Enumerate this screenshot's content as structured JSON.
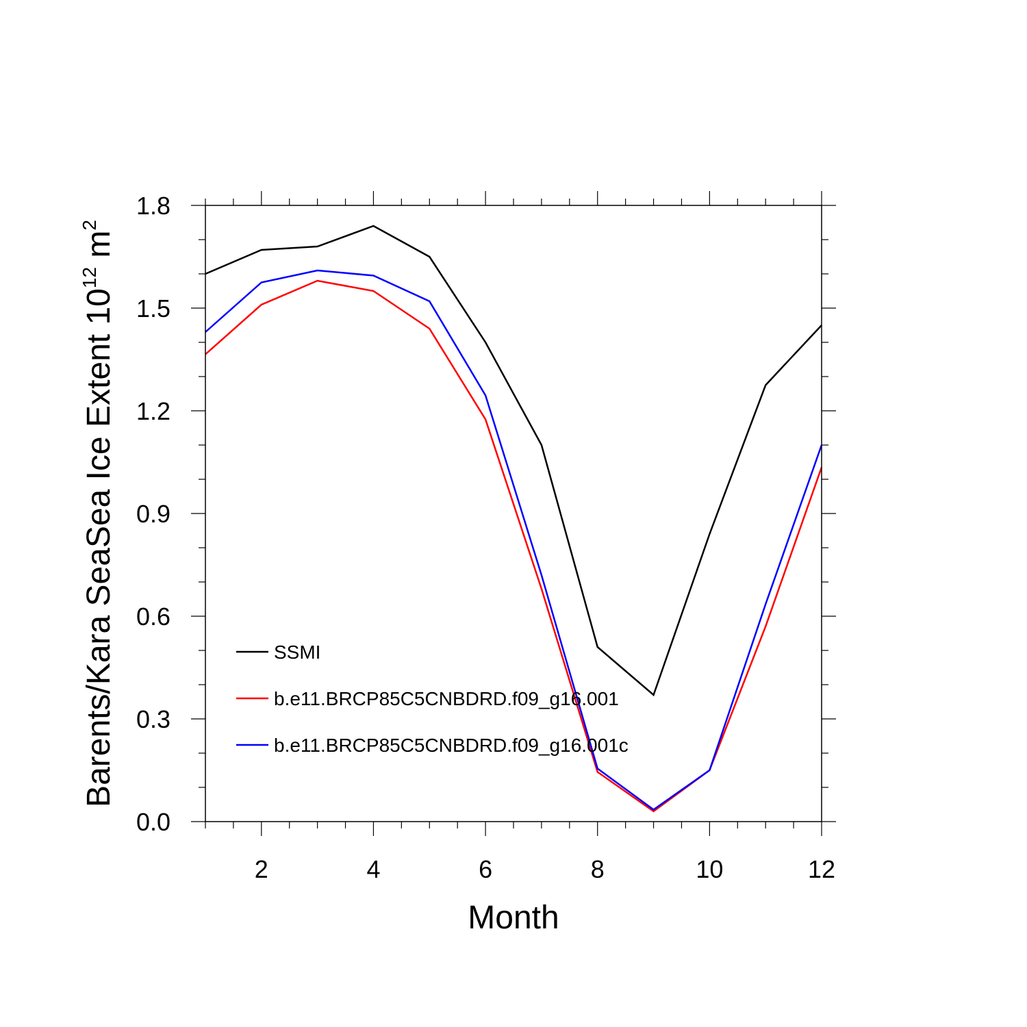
{
  "chart_data": {
    "type": "line",
    "title": "",
    "xlabel": "Month",
    "ylabel_main": "Barents/Kara SeaSea Ice Extent 10",
    "ylabel_sup1": "12",
    "ylabel_unit": " m",
    "ylabel_sup2": "2",
    "xlim": [
      1,
      12
    ],
    "ylim": [
      0,
      1.8
    ],
    "xticks": [
      2,
      4,
      6,
      8,
      10,
      12
    ],
    "xtick_labels": [
      "2",
      "4",
      "6",
      "8",
      "10",
      "12"
    ],
    "yticks": [
      0,
      0.3,
      0.6,
      0.9,
      1.2,
      1.5,
      1.8
    ],
    "ytick_labels": [
      "0.0",
      "0.3",
      "0.6",
      "0.9",
      "1.2",
      "1.5",
      "1.8"
    ],
    "x": [
      1,
      2,
      3,
      4,
      5,
      6,
      7,
      8,
      9,
      10,
      11,
      12
    ],
    "legend_position": "lower-left",
    "series": [
      {
        "name": "SSMI",
        "color": "#000000",
        "values": [
          1.6,
          1.67,
          1.68,
          1.74,
          1.65,
          1.4,
          1.1,
          0.51,
          0.37,
          0.84,
          1.275,
          1.45
        ]
      },
      {
        "name": "b.e11.BRCP85C5CNBDRD.f09_g16.001",
        "color": "#ff0000",
        "values": [
          1.365,
          1.51,
          1.58,
          1.55,
          1.44,
          1.175,
          0.68,
          0.145,
          0.03,
          0.15,
          0.57,
          1.035
        ]
      },
      {
        "name": "b.e11.BRCP85C5CNBDRD.f09_g16.001c",
        "color": "#0000ff",
        "values": [
          1.43,
          1.575,
          1.61,
          1.595,
          1.52,
          1.245,
          0.72,
          0.155,
          0.035,
          0.15,
          0.635,
          1.1
        ]
      }
    ]
  }
}
